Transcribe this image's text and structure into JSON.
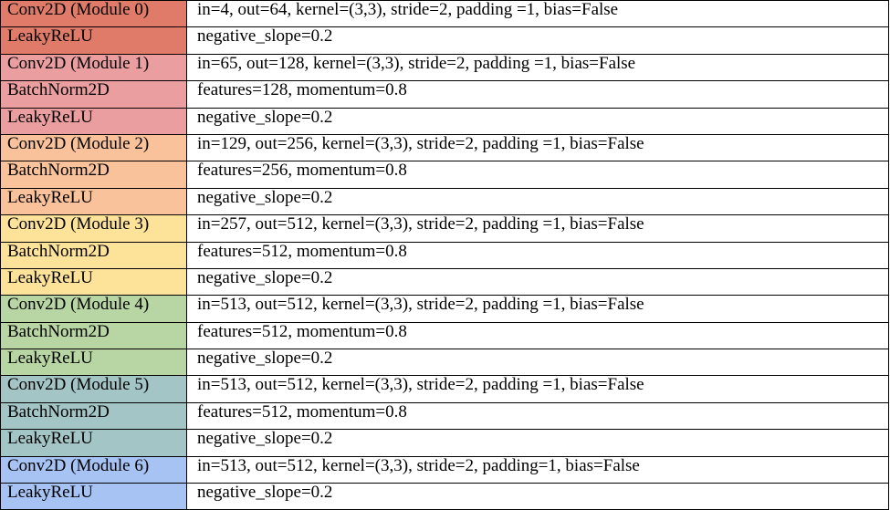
{
  "table": {
    "rows": [
      {
        "layer": "Conv2D (Module 0)",
        "params": "in=4, out=64, kernel=(3,3), stride=2, padding =1, bias=False",
        "color": "#e07b69"
      },
      {
        "layer": "LeakyReLU",
        "params": "negative_slope=0.2",
        "color": "#e07b69"
      },
      {
        "layer": "Conv2D (Module 1)",
        "params": "in=65, out=128, kernel=(3,3), stride=2, padding =1, bias=False",
        "color": "#eb9ea0"
      },
      {
        "layer": "BatchNorm2D",
        "params": "features=128, momentum=0.8",
        "color": "#eb9ea0"
      },
      {
        "layer": "LeakyReLU",
        "params": "negative_slope=0.2",
        "color": "#eb9ea0"
      },
      {
        "layer": "Conv2D (Module 2)",
        "params": "in=129, out=256, kernel=(3,3), stride=2, padding =1, bias=False",
        "color": "#f9c29a"
      },
      {
        "layer": "BatchNorm2D",
        "params": "features=256, momentum=0.8",
        "color": "#f9c29a"
      },
      {
        "layer": "LeakyReLU",
        "params": "negative_slope=0.2",
        "color": "#f9c29a"
      },
      {
        "layer": "Conv2D (Module 3)",
        "params": "in=257, out=512, kernel=(3,3), stride=2, padding =1, bias=False",
        "color": "#fde29a"
      },
      {
        "layer": "BatchNorm2D",
        "params": "features=512, momentum=0.8",
        "color": "#fde29a"
      },
      {
        "layer": "LeakyReLU",
        "params": "negative_slope=0.2",
        "color": "#fde29a"
      },
      {
        "layer": "Conv2D (Module 4)",
        "params": "in=513, out=512, kernel=(3,3), stride=2, padding =1, bias=False",
        "color": "#b8d6a3"
      },
      {
        "layer": "BatchNorm2D",
        "params": "features=512, momentum=0.8",
        "color": "#b8d6a3"
      },
      {
        "layer": "LeakyReLU",
        "params": "negative_slope=0.2",
        "color": "#b8d6a3"
      },
      {
        "layer": "Conv2D (Module 5)",
        "params": "in=513, out=512, kernel=(3,3), stride=2, padding =1, bias=False",
        "color": "#a4c5c6"
      },
      {
        "layer": "BatchNorm2D",
        "params": "features=512, momentum=0.8",
        "color": "#a4c5c6"
      },
      {
        "layer": "LeakyReLU",
        "params": "negative_slope=0.2",
        "color": "#a4c5c6"
      },
      {
        "layer": "Conv2D (Module 6)",
        "params": "in=513, out=512, kernel=(3,3), stride=2, padding=1, bias=False",
        "color": "#a6c3f3"
      },
      {
        "layer": "LeakyReLU",
        "params": "negative_slope=0.2",
        "color": "#a6c3f3"
      }
    ]
  }
}
